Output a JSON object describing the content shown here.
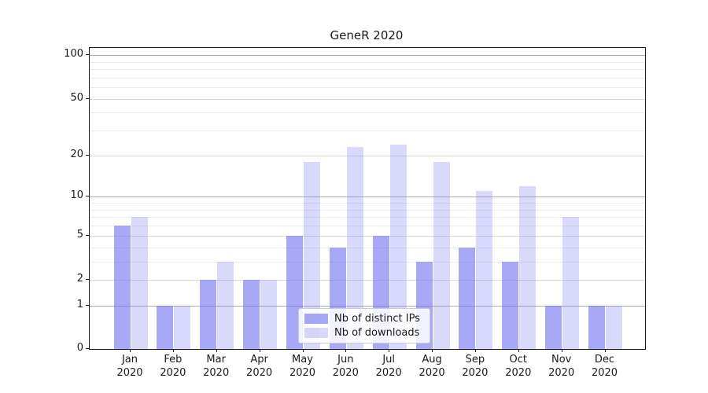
{
  "title": "GeneR 2020",
  "legend": {
    "items": [
      {
        "label": "Nb of distinct IPs",
        "swatch": "dark"
      },
      {
        "label": "Nb of downloads",
        "swatch": "light"
      }
    ],
    "position": "lower center"
  },
  "colors": {
    "bar_dark": "rgba(110,110,242,0.60)",
    "bar_light": "rgba(110,110,242,0.26)",
    "grid_major": "#b0b0b0",
    "grid_sub": "#d9d9d9",
    "grid_minor": "#ececec",
    "axis": "#1a1a1a"
  },
  "chart_data": {
    "type": "bar",
    "title": "GeneR 2020",
    "categories": [
      "Jan 2020",
      "Feb 2020",
      "Mar 2020",
      "Apr 2020",
      "May 2020",
      "Jun 2020",
      "Jul 2020",
      "Aug 2020",
      "Sep 2020",
      "Oct 2020",
      "Nov 2020",
      "Dec 2020"
    ],
    "series": [
      {
        "name": "Nb of distinct IPs",
        "values": [
          6,
          1,
          2,
          2,
          5,
          4,
          5,
          3,
          4,
          3,
          1,
          1
        ]
      },
      {
        "name": "Nb of downloads",
        "values": [
          7,
          1,
          3,
          2,
          18,
          23,
          24,
          18,
          11,
          12,
          7,
          1
        ]
      }
    ],
    "xlabel": "",
    "ylabel": "",
    "yscale": "log1p",
    "yticks": [
      0,
      1,
      2,
      5,
      10,
      20,
      50,
      100
    ],
    "grid_major_values": [
      1,
      10,
      100
    ],
    "grid_sub_values": [
      2,
      5,
      20,
      50
    ],
    "grid_minor_values": [
      3,
      4,
      6,
      7,
      8,
      9,
      30,
      40,
      60,
      70,
      80,
      90
    ],
    "ylim": [
      0,
      112
    ],
    "grid": true,
    "legend_position": "lower center"
  }
}
